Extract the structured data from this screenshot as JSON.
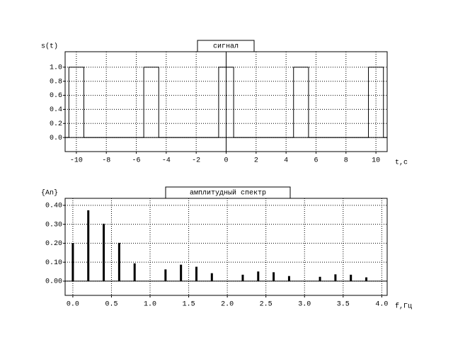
{
  "chart_data": [
    {
      "type": "line",
      "title": "сигнал",
      "ylabel": "s(t)",
      "xlabel": "t,c",
      "color": "#000000",
      "grid": true,
      "x": [
        -10.75,
        -10.5,
        -10.5,
        -9.5,
        -9.5,
        -5.5,
        -5.5,
        -4.5,
        -4.5,
        -0.5,
        -0.5,
        0.5,
        0.5,
        4.5,
        4.5,
        5.5,
        5.5,
        9.5,
        9.5,
        10.5,
        10.5,
        10.75
      ],
      "values": [
        0,
        0,
        1,
        1,
        0,
        0,
        1,
        1,
        0,
        0,
        1,
        1,
        0,
        0,
        1,
        1,
        0,
        0,
        1,
        1,
        0,
        0
      ],
      "xlim": [
        -10.75,
        10.75
      ],
      "xticks": [
        -10,
        -8,
        -6,
        -4,
        -2,
        0,
        2,
        4,
        6,
        8,
        10
      ],
      "ylim": [
        -0.2,
        1.22
      ],
      "yticks": [
        {
          "value": 0,
          "label": "0.0"
        },
        {
          "value": 0.2,
          "label": "0.2"
        },
        {
          "value": 0.4,
          "label": "0.4"
        },
        {
          "value": 0.6,
          "label": "0.6"
        },
        {
          "value": 0.8,
          "label": "0.8"
        },
        {
          "value": 1,
          "label": "1.0"
        }
      ]
    },
    {
      "type": "bar",
      "title": "амплитудный спектр",
      "ylabel": "{An}",
      "xlabel": "f,Гц",
      "color": "#000000",
      "grid": true,
      "x": [
        0,
        0.2,
        0.4,
        0.6,
        0.8,
        1.0,
        1.2,
        1.4,
        1.6,
        1.8,
        2.0,
        2.2,
        2.4,
        2.6,
        2.8,
        3.0,
        3.2,
        3.4,
        3.6,
        3.8
      ],
      "values": [
        0.2,
        0.374,
        0.303,
        0.202,
        0.094,
        0,
        0.062,
        0.087,
        0.076,
        0.042,
        0,
        0.034,
        0.051,
        0.047,
        0.027,
        0,
        0.023,
        0.036,
        0.034,
        0.02
      ],
      "xlim": [
        -0.1,
        4.07
      ],
      "xticks": [
        {
          "value": 0,
          "label": "0.0"
        },
        {
          "value": 0.5,
          "label": "0.5"
        },
        {
          "value": 1,
          "label": "1.0"
        },
        {
          "value": 1.5,
          "label": "1.5"
        },
        {
          "value": 2,
          "label": "2.0"
        },
        {
          "value": 2.5,
          "label": "2.5"
        },
        {
          "value": 3,
          "label": "3.0"
        },
        {
          "value": 3.5,
          "label": "3.5"
        },
        {
          "value": 4,
          "label": "4.0"
        }
      ],
      "ylim": [
        -0.075,
        0.437
      ],
      "yticks": [
        {
          "value": 0,
          "label": "0.00"
        },
        {
          "value": 0.1,
          "label": "0.10"
        },
        {
          "value": 0.2,
          "label": "0.20"
        },
        {
          "value": 0.3,
          "label": "0.30"
        },
        {
          "value": 0.4,
          "label": "0.40"
        }
      ]
    }
  ]
}
